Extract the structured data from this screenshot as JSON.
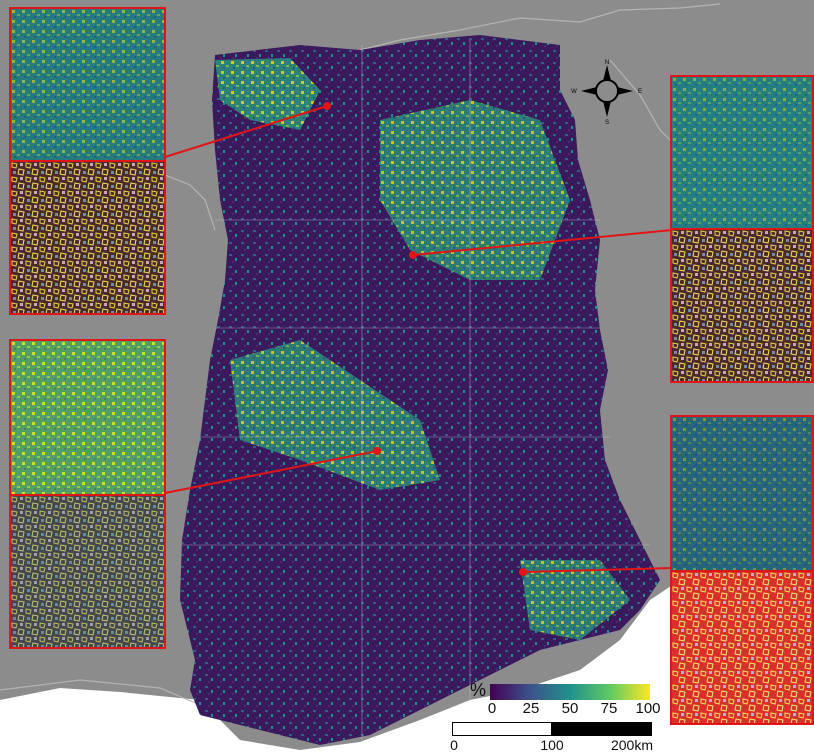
{
  "map": {
    "background_color": "#8c8c8c",
    "border_color": "#b4b4b4",
    "inset_border_color": "#e01515",
    "leader_color": "#e01515",
    "compass": {
      "n": "N",
      "s": "S",
      "e": "E",
      "w": "W"
    }
  },
  "legend": {
    "unit": "%",
    "ticks": [
      "0",
      "25",
      "50",
      "75",
      "100"
    ],
    "colormap": [
      "#440154",
      "#3b528b",
      "#21918c",
      "#5ec962",
      "#fde725"
    ]
  },
  "scale_bar": {
    "labels": [
      "0",
      "100",
      "200km"
    ]
  },
  "insets": [
    {
      "id": "north",
      "top_style": "cropland-probability",
      "bottom_style": "false-color-with-field-outlines"
    },
    {
      "id": "north-east",
      "top_style": "cropland-probability",
      "bottom_style": "false-color-with-field-outlines"
    },
    {
      "id": "central-west",
      "top_style": "cropland-probability",
      "bottom_style": "false-color-with-field-outlines"
    },
    {
      "id": "south-east",
      "top_style": "cropland-probability",
      "bottom_style": "false-color-with-field-outlines"
    }
  ]
}
